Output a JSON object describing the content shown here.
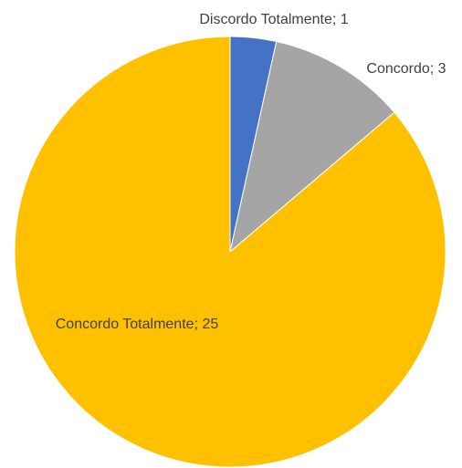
{
  "chart_data": {
    "type": "pie",
    "values": [
      1,
      3,
      25
    ],
    "value_labels": [
      "Discordo Totalmente; 1",
      "Concordo; 3",
      "Concordo Totalmente; 25"
    ],
    "colors": [
      "#4472c4",
      "#a5a5a5",
      "#ffc000"
    ]
  }
}
